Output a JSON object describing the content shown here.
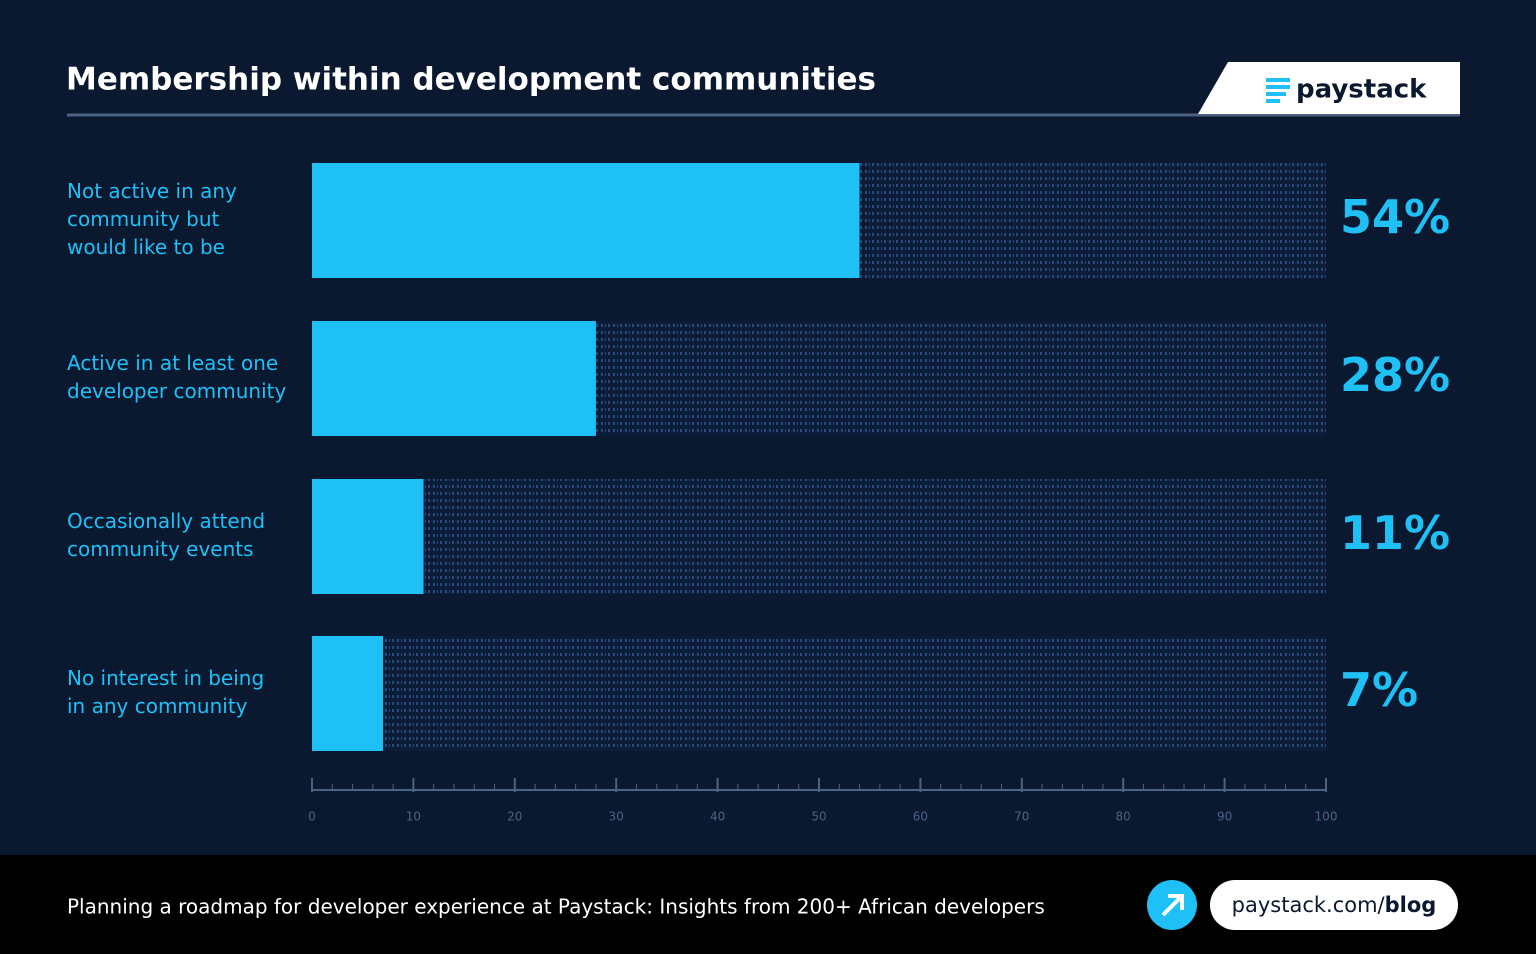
{
  "chart_data": {
    "type": "bar",
    "orientation": "horizontal",
    "title": "Membership within development communities",
    "categories": [
      [
        "Not active in any",
        "community but",
        "would like to be"
      ],
      [
        "Active in at least one",
        "developer community"
      ],
      [
        "Occasionally attend",
        "community events"
      ],
      [
        "No interest in being",
        "in any community"
      ]
    ],
    "values": [
      54,
      28,
      11,
      7
    ],
    "value_labels": [
      "54%",
      "28%",
      "11%",
      "7%"
    ],
    "color": "#1fc0f5",
    "xlim": [
      0,
      100
    ],
    "xticks": [
      0,
      10,
      20,
      30,
      40,
      50,
      60,
      70,
      80,
      90,
      100
    ]
  },
  "brand": {
    "logo": "paystack"
  },
  "footer": {
    "text": "Planning a roadmap for developer experience at Paystack: Insights from 200+ African developers",
    "link_prefix": "paystack.com/",
    "link_emphasis": "blog"
  }
}
